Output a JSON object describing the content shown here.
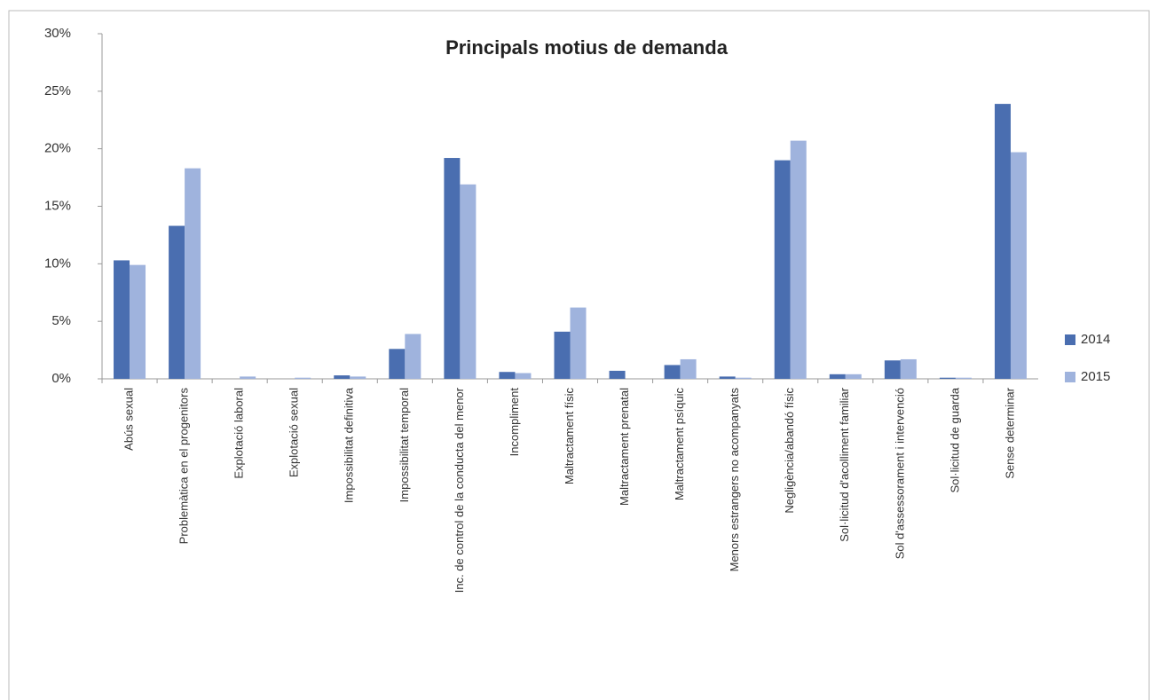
{
  "chart_data": {
    "type": "bar",
    "title": "Principals motius de demanda",
    "categories": [
      "Abús sexual",
      "Problemàtica en el progenitors",
      "Explotació laboral",
      "Explotació sexual",
      "Impossibilitat definitiva",
      "Impossibilitat temporal",
      "Inc. de control de la conducta del menor",
      "Incompliment",
      "Maltractament físic",
      "Maltractament prenatal",
      "Maltractament psíquic",
      "Menors estrangers no acompanyats",
      "Negligència/abandó físic",
      "Sol·licitud d'acolliment familiar",
      "Sol d'assessorament i intervenció",
      "Sol·licitud de guarda",
      "Sense determinar"
    ],
    "series": [
      {
        "name": "2014",
        "color": "#4a6eb0",
        "values": [
          10.3,
          13.3,
          0,
          0,
          0.3,
          2.6,
          19.2,
          0.6,
          4.1,
          0.7,
          1.2,
          0.2,
          19.0,
          0.4,
          1.6,
          0.1,
          23.9
        ]
      },
      {
        "name": "2015",
        "color": "#9fb3dd",
        "values": [
          9.9,
          18.3,
          0.2,
          0.1,
          0.2,
          3.9,
          16.9,
          0.5,
          6.2,
          0,
          1.7,
          0.1,
          20.7,
          0.4,
          1.7,
          0.1,
          19.7
        ]
      }
    ],
    "ylim": [
      0,
      30
    ],
    "yticks": [
      {
        "value": 0,
        "label": "0%"
      },
      {
        "value": 5,
        "label": "5%"
      },
      {
        "value": 10,
        "label": "10%"
      },
      {
        "value": 15,
        "label": "15%"
      },
      {
        "value": 20,
        "label": "20%"
      },
      {
        "value": 25,
        "label": "25%"
      },
      {
        "value": 30,
        "label": "30%"
      }
    ],
    "grid": false,
    "legend": "right"
  }
}
